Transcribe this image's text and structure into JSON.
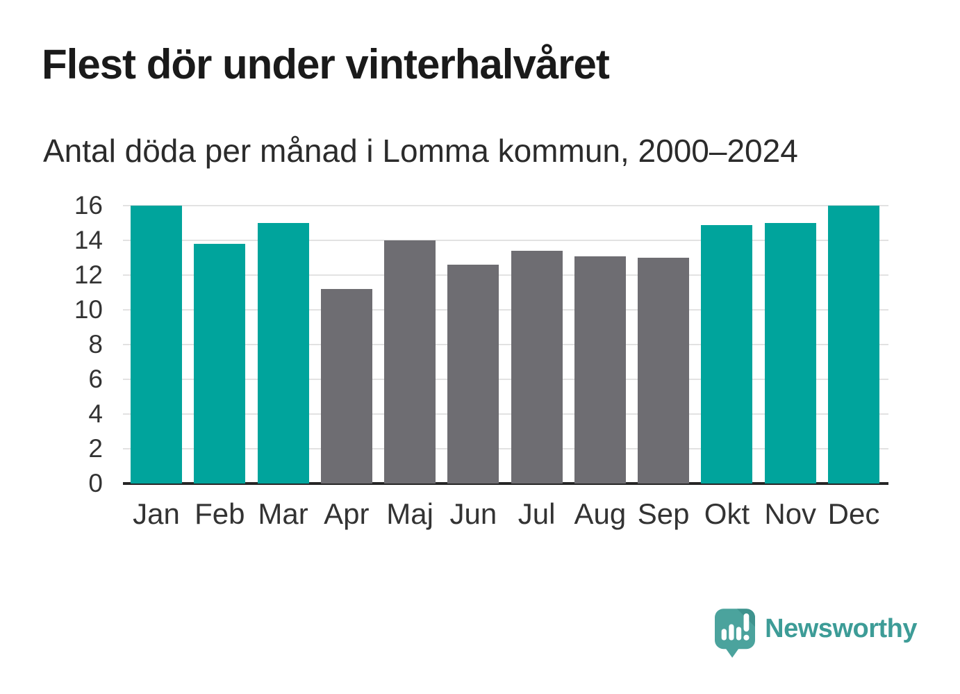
{
  "header": {
    "title": "Flest dör under vinterhalvåret",
    "subtitle": "Antal döda per månad i Lomma kommun, 2000–2024"
  },
  "chart_data": {
    "type": "bar",
    "title": "Flest dör under vinterhalvåret",
    "subtitle": "Antal döda per månad i Lomma kommun, 2000–2024",
    "categories": [
      "Jan",
      "Feb",
      "Mar",
      "Apr",
      "Maj",
      "Jun",
      "Jul",
      "Aug",
      "Sep",
      "Okt",
      "Nov",
      "Dec"
    ],
    "values": [
      16.0,
      13.8,
      15.0,
      11.2,
      14.0,
      12.6,
      13.4,
      13.1,
      13.0,
      14.9,
      15.0,
      16.0
    ],
    "bar_groups": [
      "winter",
      "winter",
      "winter",
      "summer",
      "summer",
      "summer",
      "summer",
      "summer",
      "summer",
      "winter",
      "winter",
      "winter"
    ],
    "xlabel": "",
    "ylabel": "",
    "ylim": [
      0,
      16
    ],
    "yticks": [
      0,
      2,
      4,
      6,
      8,
      10,
      12,
      14,
      16
    ],
    "grid": true,
    "legend": "none",
    "colors": {
      "winter": "#00a49c",
      "summer": "#6e6d72",
      "gridline": "#e2e2e2",
      "axis": "#262626",
      "tick_text": "#333333"
    }
  },
  "footer": {
    "brand": "Newsworthy",
    "brand_color": "#3d9c97",
    "logo_icon": "newsworthy-speech-bubble-bar-chart-icon",
    "logo_colors": {
      "bubble": "#4ba39d",
      "fold": "#3e938e",
      "glyphs": "#ffffff"
    }
  }
}
